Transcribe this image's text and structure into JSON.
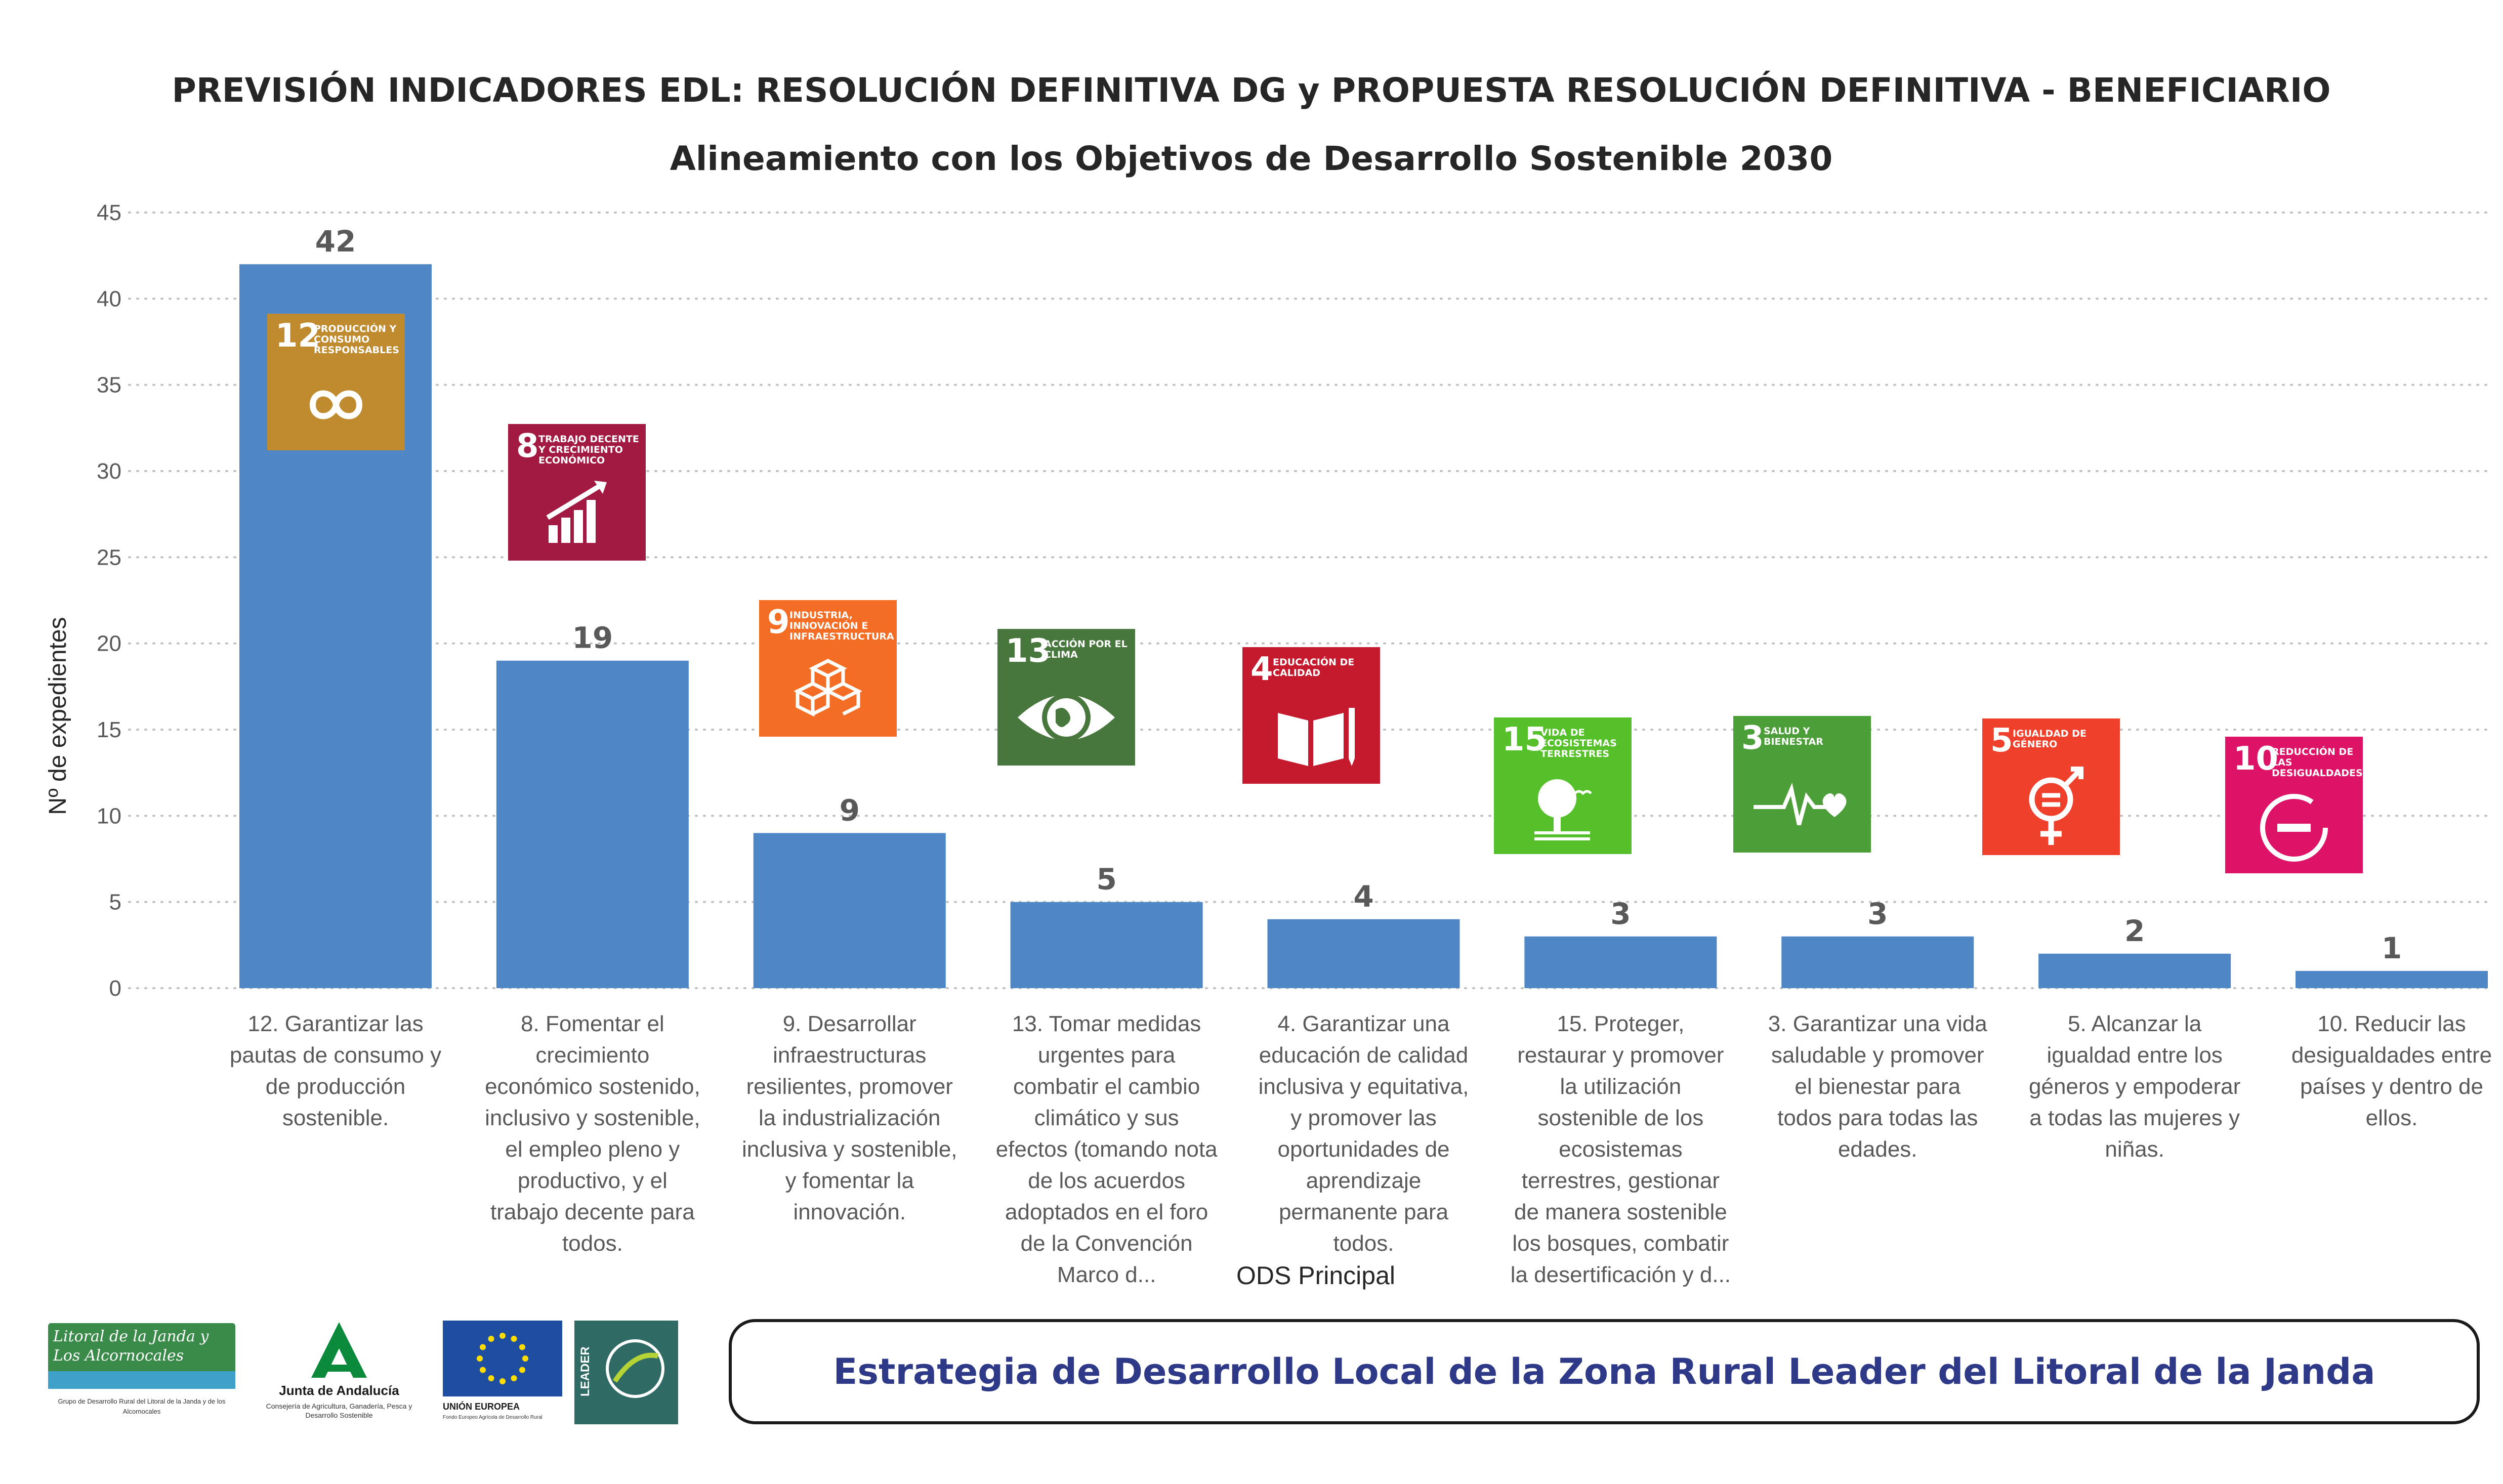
{
  "title": "PREVISIÓN INDICADORES EDL: RESOLUCIÓN DEFINITIVA DG y PROPUESTA RESOLUCIÓN DEFINITIVA - BENEFICIARIO",
  "subtitle": "Alineamiento con los Objetivos de Desarrollo Sostenible 2030",
  "colors": {
    "bar": "#4f86c6",
    "grid": "#bfbfbf",
    "title": "#262626",
    "footer_text": "#2e3a87"
  },
  "chart_data": {
    "type": "bar",
    "title": "PREVISIÓN INDICADORES EDL: RESOLUCIÓN DEFINITIVA DG y PROPUESTA RESOLUCIÓN DEFINITIVA - BENEFICIARIO",
    "subtitle": "Alineamiento con los Objetivos de Desarrollo Sostenible 2030",
    "xlabel": "ODS Principal",
    "ylabel": "Nº de expedientes",
    "ylim": [
      0,
      45
    ],
    "yticks": [
      0,
      5,
      10,
      15,
      20,
      25,
      30,
      35,
      40,
      45
    ],
    "grid": "horizontal dotted",
    "categories": [
      "12. Garantizar las pautas de consumo y de producción sostenible.",
      "8. Fomentar el crecimiento económico sostenido, inclusivo y sostenible, el empleo pleno y productivo, y el trabajo decente para todos.",
      "9. Desarrollar infraestructuras resilientes, promover la industrialización inclusiva y sostenible, y fomentar la innovación.",
      "13. Tomar medidas urgentes para combatir el cambio climático y sus efectos (tomando nota de los acuerdos adoptados en el foro de la Convención Marco d...",
      "4. Garantizar una educación de calidad inclusiva y equitativa, y promover las oportunidades de aprendizaje permanente para todos.",
      "15. Proteger, restaurar y promover la utilización sostenible de los ecosistemas terrestres, gestionar de manera sostenible los bosques, combatir la desertificación y d...",
      "3. Garantizar una vida saludable y promover el bienestar para todos para todas las edades.",
      "5. Alcanzar la igualdad entre los géneros y empoderar a todas las mujeres y niñas.",
      "10. Reducir las desigualdades entre países y dentro de ellos."
    ],
    "values": [
      42,
      19,
      9,
      5,
      4,
      3,
      3,
      2,
      1
    ]
  },
  "sdg_icons": [
    {
      "num": "12",
      "label": "Producción y consumo responsables",
      "color": "#bf8b2e",
      "icon": "infinity-icon"
    },
    {
      "num": "8",
      "label": "Trabajo decente y crecimiento económico",
      "color": "#a21942",
      "icon": "growth-chart-icon"
    },
    {
      "num": "9",
      "label": "Industria, innovación e infraestructura",
      "color": "#f36d25",
      "icon": "cubes-icon"
    },
    {
      "num": "13",
      "label": "Acción por el clima",
      "color": "#48773e",
      "icon": "eye-globe-icon"
    },
    {
      "num": "4",
      "label": "Educación de calidad",
      "color": "#c5192d",
      "icon": "book-icon"
    },
    {
      "num": "15",
      "label": "Vida de ecosistemas terrestres",
      "color": "#56c02b",
      "icon": "tree-icon"
    },
    {
      "num": "3",
      "label": "Salud y bienestar",
      "color": "#4c9f38",
      "icon": "heartbeat-icon"
    },
    {
      "num": "5",
      "label": "Igualdad de género",
      "color": "#ef402b",
      "icon": "gender-icon"
    },
    {
      "num": "10",
      "label": "Reducción de las desigualdades",
      "color": "#dd1367",
      "icon": "minus-circle-icon"
    }
  ],
  "footer": {
    "text": "Estrategia de Desarrollo Local de la Zona Rural Leader del Litoral de la Janda",
    "logos": {
      "gdr_name": "Litoral de la Janda y Los Alcornocales",
      "gdr_sub": "Grupo de Desarrollo Rural del Litoral de la Janda y de los Alcornocales",
      "ja_name": "Junta de Andalucía",
      "ja_sub": "Consejería de Agricultura, Ganadería, Pesca y Desarrollo Sostenible",
      "eu_name": "UNIÓN EUROPEA",
      "eu_sub": "Fondo Europeo Agrícola de Desarrollo Rural",
      "leader": "LEADER"
    }
  }
}
